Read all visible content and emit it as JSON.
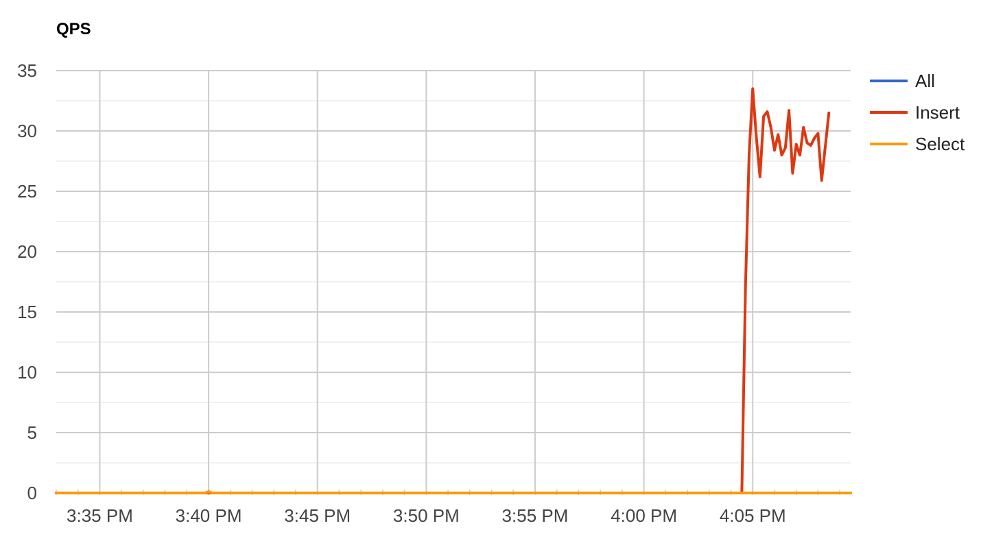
{
  "chart_data": {
    "type": "line",
    "title": "QPS",
    "xlabel": "",
    "ylabel": "",
    "ylim": [
      0,
      35
    ],
    "yticks": [
      0,
      5,
      10,
      15,
      20,
      25,
      30,
      35
    ],
    "xlim": [
      "3:33:00 PM",
      "4:09:30 PM"
    ],
    "xticks": [
      {
        "t": "3:35:00 PM",
        "label": "3:35 PM"
      },
      {
        "t": "3:40:00 PM",
        "label": "3:40 PM"
      },
      {
        "t": "3:45:00 PM",
        "label": "3:45 PM"
      },
      {
        "t": "3:50:00 PM",
        "label": "3:50 PM"
      },
      {
        "t": "3:55:00 PM",
        "label": "3:55 PM"
      },
      {
        "t": "4:00:00 PM",
        "label": "4:00 PM"
      },
      {
        "t": "4:05:00 PM",
        "label": "4:05 PM"
      }
    ],
    "grid": true,
    "legend_position": "right",
    "series": [
      {
        "name": "All",
        "color": "#3366cc",
        "points": [
          [
            "3:33:00 PM",
            0
          ],
          [
            "4:09:30 PM",
            0
          ]
        ]
      },
      {
        "name": "Insert",
        "color": "#dc3912",
        "points": [
          [
            "3:33:00 PM",
            0
          ],
          [
            "4:04:30 PM",
            0
          ],
          [
            "4:04:40 PM",
            17
          ],
          [
            "4:04:50 PM",
            28
          ],
          [
            "4:05:00 PM",
            33.5
          ],
          [
            "4:05:10 PM",
            29.5
          ],
          [
            "4:05:20 PM",
            26.2
          ],
          [
            "4:05:30 PM",
            31.2
          ],
          [
            "4:05:40 PM",
            31.6
          ],
          [
            "4:05:50 PM",
            30.3
          ],
          [
            "4:06:00 PM",
            28.4
          ],
          [
            "4:06:10 PM",
            29.7
          ],
          [
            "4:06:20 PM",
            28
          ],
          [
            "4:06:30 PM",
            28.6
          ],
          [
            "4:06:40 PM",
            31.7
          ],
          [
            "4:06:50 PM",
            26.5
          ],
          [
            "4:07:00 PM",
            28.9
          ],
          [
            "4:07:10 PM",
            28
          ],
          [
            "4:07:20 PM",
            30.3
          ],
          [
            "4:07:30 PM",
            29
          ],
          [
            "4:07:40 PM",
            28.8
          ],
          [
            "4:07:50 PM",
            29.4
          ],
          [
            "4:08:00 PM",
            29.8
          ],
          [
            "4:08:10 PM",
            25.9
          ],
          [
            "4:08:20 PM",
            28.7
          ],
          [
            "4:08:30 PM",
            31.5
          ]
        ]
      },
      {
        "name": "Select",
        "color": "#ff9900",
        "points": [
          [
            "3:33:00 PM",
            0
          ],
          [
            "3:39:50 PM",
            0
          ],
          [
            "3:40:00 PM",
            0.12
          ],
          [
            "3:40:10 PM",
            0
          ],
          [
            "4:09:30 PM",
            0
          ]
        ]
      }
    ]
  }
}
